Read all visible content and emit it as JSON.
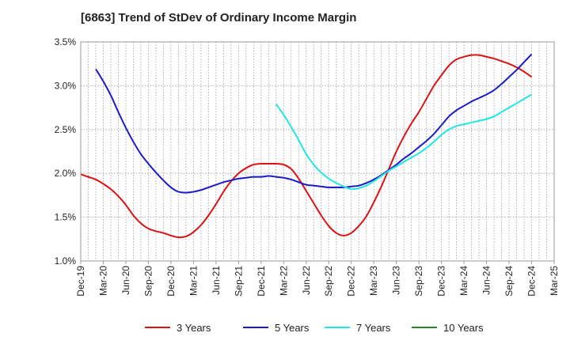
{
  "chart_data": {
    "type": "line",
    "title": "[6863]  Trend of StDev of Ordinary Income Margin",
    "xlabel": "",
    "ylabel": "",
    "x_ticks": [
      "Dec-19",
      "Mar-20",
      "Jun-20",
      "Sep-20",
      "Dec-20",
      "Mar-21",
      "Jun-21",
      "Sep-21",
      "Dec-21",
      "Mar-22",
      "Jun-22",
      "Sep-22",
      "Dec-22",
      "Mar-23",
      "Jun-23",
      "Sep-23",
      "Dec-23",
      "Mar-24",
      "Jun-24",
      "Sep-24",
      "Dec-24",
      "Mar-25"
    ],
    "y_ticks": [
      "1.0%",
      "1.5%",
      "2.0%",
      "2.5%",
      "3.0%",
      "3.5%"
    ],
    "ylim": [
      1.0,
      3.5
    ],
    "y_unit": "%",
    "grid": true,
    "legend_position": "bottom",
    "series": [
      {
        "name": "3 Years",
        "color": "#dd1111",
        "points": [
          [
            "Dec-19",
            1.99
          ],
          [
            "Jan-20",
            1.96
          ],
          [
            "Feb-20",
            1.93
          ],
          [
            "Mar-20",
            1.88
          ],
          [
            "Apr-20",
            1.82
          ],
          [
            "May-20",
            1.74
          ],
          [
            "Jun-20",
            1.64
          ],
          [
            "Jul-20",
            1.52
          ],
          [
            "Aug-20",
            1.43
          ],
          [
            "Sep-20",
            1.37
          ],
          [
            "Oct-20",
            1.34
          ],
          [
            "Nov-20",
            1.32
          ],
          [
            "Dec-20",
            1.29
          ],
          [
            "Jan-21",
            1.27
          ],
          [
            "Feb-21",
            1.28
          ],
          [
            "Mar-21",
            1.33
          ],
          [
            "Apr-21",
            1.41
          ],
          [
            "May-21",
            1.52
          ],
          [
            "Jun-21",
            1.65
          ],
          [
            "Jul-21",
            1.79
          ],
          [
            "Aug-21",
            1.91
          ],
          [
            "Sep-21",
            2.0
          ],
          [
            "Oct-21",
            2.06
          ],
          [
            "Nov-21",
            2.1
          ],
          [
            "Dec-21",
            2.11
          ],
          [
            "Jan-22",
            2.11
          ],
          [
            "Feb-22",
            2.11
          ],
          [
            "Mar-22",
            2.1
          ],
          [
            "Apr-22",
            2.05
          ],
          [
            "May-22",
            1.94
          ],
          [
            "Jun-22",
            1.8
          ],
          [
            "Jul-22",
            1.66
          ],
          [
            "Aug-22",
            1.52
          ],
          [
            "Sep-22",
            1.4
          ],
          [
            "Oct-22",
            1.32
          ],
          [
            "Nov-22",
            1.29
          ],
          [
            "Dec-22",
            1.32
          ],
          [
            "Jan-23",
            1.4
          ],
          [
            "Feb-23",
            1.51
          ],
          [
            "Mar-23",
            1.67
          ],
          [
            "Apr-23",
            1.85
          ],
          [
            "May-23",
            2.05
          ],
          [
            "Jun-23",
            2.25
          ],
          [
            "Jul-23",
            2.42
          ],
          [
            "Aug-23",
            2.57
          ],
          [
            "Sep-23",
            2.7
          ],
          [
            "Oct-23",
            2.85
          ],
          [
            "Nov-23",
            3.0
          ],
          [
            "Dec-23",
            3.12
          ],
          [
            "Jan-24",
            3.23
          ],
          [
            "Feb-24",
            3.3
          ],
          [
            "Mar-24",
            3.33
          ],
          [
            "Apr-24",
            3.35
          ],
          [
            "May-24",
            3.35
          ],
          [
            "Jun-24",
            3.33
          ],
          [
            "Jul-24",
            3.31
          ],
          [
            "Aug-24",
            3.28
          ],
          [
            "Sep-24",
            3.25
          ],
          [
            "Oct-24",
            3.21
          ],
          [
            "Nov-24",
            3.16
          ],
          [
            "Dec-24",
            3.1
          ]
        ]
      },
      {
        "name": "5 Years",
        "color": "#1a1acc",
        "points": [
          [
            "Feb-20",
            3.19
          ],
          [
            "Mar-20",
            3.05
          ],
          [
            "Apr-20",
            2.89
          ],
          [
            "May-20",
            2.7
          ],
          [
            "Jun-20",
            2.52
          ],
          [
            "Jul-20",
            2.36
          ],
          [
            "Aug-20",
            2.22
          ],
          [
            "Sep-20",
            2.11
          ],
          [
            "Oct-20",
            2.01
          ],
          [
            "Nov-20",
            1.92
          ],
          [
            "Dec-20",
            1.84
          ],
          [
            "Jan-21",
            1.79
          ],
          [
            "Feb-21",
            1.78
          ],
          [
            "Mar-21",
            1.79
          ],
          [
            "Apr-21",
            1.81
          ],
          [
            "May-21",
            1.84
          ],
          [
            "Jun-21",
            1.87
          ],
          [
            "Jul-21",
            1.9
          ],
          [
            "Aug-21",
            1.92
          ],
          [
            "Sep-21",
            1.94
          ],
          [
            "Oct-21",
            1.95
          ],
          [
            "Nov-21",
            1.96
          ],
          [
            "Dec-21",
            1.96
          ],
          [
            "Jan-22",
            1.97
          ],
          [
            "Feb-22",
            1.96
          ],
          [
            "Mar-22",
            1.95
          ],
          [
            "Apr-22",
            1.93
          ],
          [
            "May-22",
            1.9
          ],
          [
            "Jun-22",
            1.87
          ],
          [
            "Jul-22",
            1.86
          ],
          [
            "Aug-22",
            1.85
          ],
          [
            "Sep-22",
            1.84
          ],
          [
            "Oct-22",
            1.84
          ],
          [
            "Nov-22",
            1.84
          ],
          [
            "Dec-22",
            1.85
          ],
          [
            "Jan-23",
            1.86
          ],
          [
            "Feb-23",
            1.89
          ],
          [
            "Mar-23",
            1.93
          ],
          [
            "Apr-23",
            1.98
          ],
          [
            "May-23",
            2.04
          ],
          [
            "Jun-23",
            2.1
          ],
          [
            "Jul-23",
            2.17
          ],
          [
            "Aug-23",
            2.23
          ],
          [
            "Sep-23",
            2.3
          ],
          [
            "Oct-23",
            2.37
          ],
          [
            "Nov-23",
            2.45
          ],
          [
            "Dec-23",
            2.55
          ],
          [
            "Jan-24",
            2.65
          ],
          [
            "Feb-24",
            2.72
          ],
          [
            "Mar-24",
            2.77
          ],
          [
            "Apr-24",
            2.82
          ],
          [
            "May-24",
            2.86
          ],
          [
            "Jun-24",
            2.9
          ],
          [
            "Jul-24",
            2.95
          ],
          [
            "Aug-24",
            3.02
          ],
          [
            "Sep-24",
            3.1
          ],
          [
            "Oct-24",
            3.18
          ],
          [
            "Nov-24",
            3.27
          ],
          [
            "Dec-24",
            3.36
          ]
        ]
      },
      {
        "name": "7 Years",
        "color": "#22e6e6",
        "points": [
          [
            "Feb-22",
            2.79
          ],
          [
            "Mar-22",
            2.67
          ],
          [
            "Apr-22",
            2.53
          ],
          [
            "May-22",
            2.38
          ],
          [
            "Jun-22",
            2.22
          ],
          [
            "Jul-22",
            2.1
          ],
          [
            "Aug-22",
            2.01
          ],
          [
            "Sep-22",
            1.94
          ],
          [
            "Oct-22",
            1.89
          ],
          [
            "Nov-22",
            1.85
          ],
          [
            "Dec-22",
            1.82
          ],
          [
            "Jan-23",
            1.83
          ],
          [
            "Feb-23",
            1.86
          ],
          [
            "Mar-23",
            1.91
          ],
          [
            "Apr-23",
            1.97
          ],
          [
            "May-23",
            2.03
          ],
          [
            "Jun-23",
            2.08
          ],
          [
            "Jul-23",
            2.13
          ],
          [
            "Aug-23",
            2.18
          ],
          [
            "Sep-23",
            2.23
          ],
          [
            "Oct-23",
            2.29
          ],
          [
            "Nov-23",
            2.36
          ],
          [
            "Dec-23",
            2.44
          ],
          [
            "Jan-24",
            2.5
          ],
          [
            "Feb-24",
            2.54
          ],
          [
            "Mar-24",
            2.56
          ],
          [
            "Apr-24",
            2.58
          ],
          [
            "May-24",
            2.6
          ],
          [
            "Jun-24",
            2.62
          ],
          [
            "Jul-24",
            2.65
          ],
          [
            "Aug-24",
            2.7
          ],
          [
            "Sep-24",
            2.75
          ],
          [
            "Oct-24",
            2.8
          ],
          [
            "Nov-24",
            2.85
          ],
          [
            "Dec-24",
            2.9
          ]
        ]
      },
      {
        "name": "10 Years",
        "color": "#228822",
        "points": []
      }
    ]
  }
}
